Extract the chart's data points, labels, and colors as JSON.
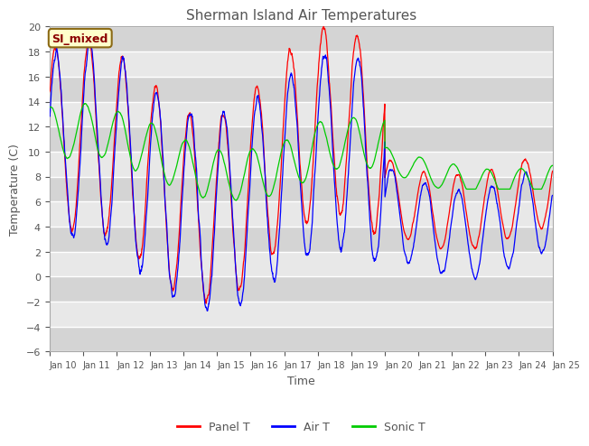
{
  "title": "Sherman Island Air Temperatures",
  "xlabel": "Time",
  "ylabel": "Temperature (C)",
  "ylim": [
    -6,
    20
  ],
  "yticks": [
    -6,
    -4,
    -2,
    0,
    2,
    4,
    6,
    8,
    10,
    12,
    14,
    16,
    18,
    20
  ],
  "x_tick_labels": [
    "Jan 10",
    "Jan 11",
    "Jan 12",
    "Jan 13",
    "Jan 14",
    "Jan 15",
    "Jan 16",
    "Jan 17",
    "Jan 18",
    "Jan 19",
    "Jan 20",
    "Jan 21",
    "Jan 22",
    "Jan 23",
    "Jan 24",
    "Jan 25"
  ],
  "line_colors": [
    "red",
    "blue",
    "#00cc00"
  ],
  "line_labels": [
    "Panel T",
    "Air T",
    "Sonic T"
  ],
  "annotation_text": "SI_mixed",
  "annotation_bg": "#ffffcc",
  "annotation_border": "#8b6914",
  "plot_bg_light": "#e8e8e8",
  "plot_bg_dark": "#d0d0d0",
  "grid_color": "#ffffff",
  "title_color": "#555555",
  "label_color": "#555555",
  "tick_color": "#555555"
}
